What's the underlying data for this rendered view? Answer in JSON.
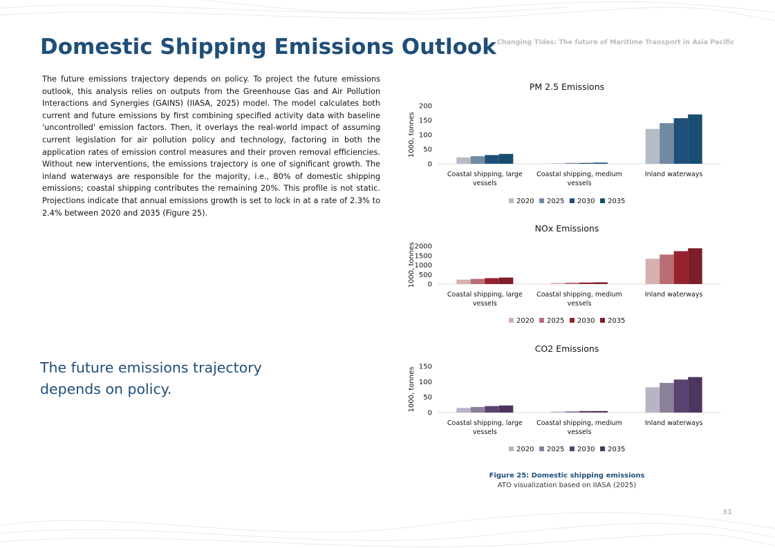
{
  "page": {
    "title": "Domestic Shipping Emissions Outlook",
    "running_header": "Changing Tides: The future of Maritime Transport in Asia Pacific",
    "body_text": "The future emissions trajectory depends on policy. To project the future emissions outlook, this analysis relies on outputs from the Greenhouse Gas and Air Pollution Interactions and Synergies (GAINS) (IIASA, 2025) model. The model calculates both current and future emissions by first combining specified activity data with baseline 'uncontrolled' emission factors. Then, it overlays the real-world impact of assuming current legislation for air pollution policy and technology, factoring in both the application rates of emission control measures and their proven removal efficiencies. Without new interventions, the emissions trajectory is one of significant growth. The inland waterways are responsible for the majority, i.e., 80% of domestic shipping emissions; coastal shipping contributes the remaining 20%. This profile is not static. Projections indicate that annual emissions growth is set to lock in at a rate of 2.3% to 2.4% between 2020 and 2035 (Figure 25).",
    "pullquote": "The future emissions trajectory depends on policy.",
    "figure_caption_title": "Figure 25: Domestic shipping emissions",
    "figure_caption_source": "ATO visualization based on IIASA (2025)",
    "page_number": "31"
  },
  "chart_data": [
    {
      "type": "bar",
      "title": "PM 2.5 Emissions",
      "ylabel": "1000, tonnes",
      "xlabel": "",
      "ylim": [
        0,
        200
      ],
      "yticks": [
        0,
        50,
        100,
        150,
        200
      ],
      "categories": [
        [
          "Coastal shipping, large",
          "vessels"
        ],
        [
          "Coastal shipping, medium",
          "vessels"
        ],
        [
          "Inland waterways"
        ]
      ],
      "legend_position": "bottom",
      "series": [
        {
          "name": "2020",
          "color": "#b4bcc6",
          "values": [
            22,
            2,
            120
          ]
        },
        {
          "name": "2025",
          "color": "#718aa3",
          "values": [
            26,
            3,
            140
          ]
        },
        {
          "name": "2030",
          "color": "#1f4e79",
          "values": [
            30,
            3,
            157
          ]
        },
        {
          "name": "2035",
          "color": "#174d70",
          "values": [
            34,
            4,
            170
          ]
        }
      ]
    },
    {
      "type": "bar",
      "title": "NOx Emissions",
      "ylabel": "1000, tonnes",
      "xlabel": "",
      "ylim": [
        0,
        2000
      ],
      "yticks": [
        0,
        500,
        1000,
        1500,
        2000
      ],
      "categories": [
        [
          "Coastal shipping, large",
          "vessels"
        ],
        [
          "Coastal shipping, medium",
          "vessels"
        ],
        [
          "Inland waterways"
        ]
      ],
      "legend_position": "bottom",
      "series": [
        {
          "name": "2020",
          "color": "#d5b0b0",
          "values": [
            230,
            60,
            1330
          ]
        },
        {
          "name": "2025",
          "color": "#b86e74",
          "values": [
            270,
            70,
            1550
          ]
        },
        {
          "name": "2030",
          "color": "#95232e",
          "values": [
            310,
            80,
            1730
          ]
        },
        {
          "name": "2035",
          "color": "#7d1e28",
          "values": [
            340,
            90,
            1880
          ]
        }
      ]
    },
    {
      "type": "bar",
      "title": "CO2 Emissions",
      "ylabel": "1000, tonnes",
      "xlabel": "",
      "ylim": [
        0,
        150
      ],
      "yticks": [
        0,
        50,
        100,
        150
      ],
      "categories": [
        [
          "Coastal shipping, large",
          "vessels"
        ],
        [
          "Coastal shipping, medium",
          "vessels"
        ],
        [
          "Inland waterways"
        ]
      ],
      "legend_position": "bottom",
      "series": [
        {
          "name": "2020",
          "color": "#b8b4c6",
          "values": [
            15,
            3,
            82
          ]
        },
        {
          "name": "2025",
          "color": "#8b7f99",
          "values": [
            18,
            4,
            96
          ]
        },
        {
          "name": "2030",
          "color": "#5a4271",
          "values": [
            21,
            5,
            107
          ]
        },
        {
          "name": "2035",
          "color": "#4e3560",
          "values": [
            23,
            5,
            115
          ]
        }
      ]
    }
  ]
}
